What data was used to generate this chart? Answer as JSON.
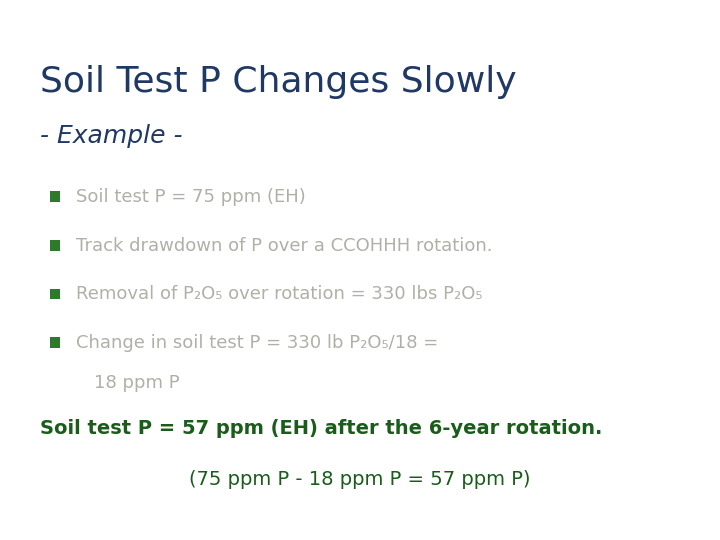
{
  "title_line1": "Soil Test P Changes Slowly",
  "title_line2": "- Example -",
  "title_color": "#1f3864",
  "subtitle_color": "#1f3864",
  "bullet_color": "#2d7a2d",
  "bullet_text_color": "#b0b0a8",
  "bullet_items_plain": [
    "Soil test P = 75 ppm (EH)",
    "Track drawdown of P over a CCOHHH rotation."
  ],
  "bottom_line1": "Soil test P = 57 ppm (EH) after the 6-year rotation.",
  "bottom_line2": "(75 ppm P - 18 ppm P = 57 ppm P)",
  "bottom_color": "#1a5c1a",
  "background_color": "#ffffff",
  "fig_width": 7.2,
  "fig_height": 5.4,
  "dpi": 100
}
